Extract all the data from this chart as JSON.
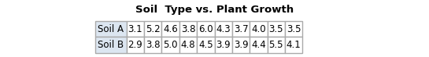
{
  "title": "Soil  Type vs. Plant Growth",
  "rows": [
    {
      "label": "Soil A",
      "values": [
        "3.1",
        "5.2",
        "4.6",
        "3.8",
        "6.0",
        "4.3",
        "3.7",
        "4.0",
        "3.5",
        "3.5"
      ]
    },
    {
      "label": "Soil B",
      "values": [
        "2.9",
        "3.8",
        "5.0",
        "4.8",
        "4.5",
        "3.9",
        "3.9",
        "4.4",
        "5.5",
        "4.1"
      ]
    }
  ],
  "title_fontsize": 9.5,
  "cell_fontsize": 8.5,
  "background_color": "#ffffff",
  "label_bg": "#dce6f1",
  "cell_bg": "#ffffff",
  "border_color": "#aaaaaa",
  "title_color": "#000000",
  "fig_width": 5.45,
  "fig_height": 0.73
}
